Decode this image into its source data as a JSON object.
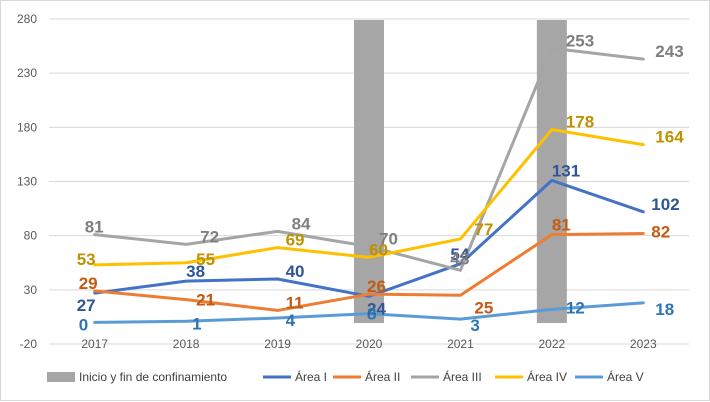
{
  "chart_data": {
    "type": "line",
    "title": "",
    "xlabel": "",
    "ylabel": "",
    "categories": [
      "2017",
      "2018",
      "2019",
      "2020",
      "2021",
      "2022",
      "2023"
    ],
    "ylim": [
      -20,
      280
    ],
    "yticks": [
      -20,
      30,
      80,
      130,
      180,
      230,
      280
    ],
    "grid": true,
    "legend_position": "bottom",
    "confinement": {
      "name": "Inicio y fin de confinamiento",
      "color": "#a6a6a6",
      "x": [
        "2020",
        "2022"
      ]
    },
    "series": [
      {
        "name": "Área I",
        "color": "#4472c4",
        "label_color": "#2f5597",
        "values": [
          27,
          38,
          40,
          24,
          54,
          131,
          102
        ]
      },
      {
        "name": "Área II",
        "color": "#ed7d31",
        "label_color": "#c55a11",
        "values": [
          29,
          21,
          11,
          26,
          25,
          81,
          82
        ]
      },
      {
        "name": "Área III",
        "color": "#a5a5a5",
        "label_color": "#7f7f7f",
        "values": [
          81,
          72,
          84,
          70,
          48,
          253,
          243
        ]
      },
      {
        "name": "Área IV",
        "color": "#ffc000",
        "label_color": "#bf9000",
        "values": [
          53,
          55,
          69,
          60,
          77,
          178,
          164
        ]
      },
      {
        "name": "Área V",
        "color": "#5b9bd5",
        "label_color": "#2e75b6",
        "values": [
          0,
          1,
          4,
          8,
          3,
          12,
          18
        ]
      }
    ]
  }
}
